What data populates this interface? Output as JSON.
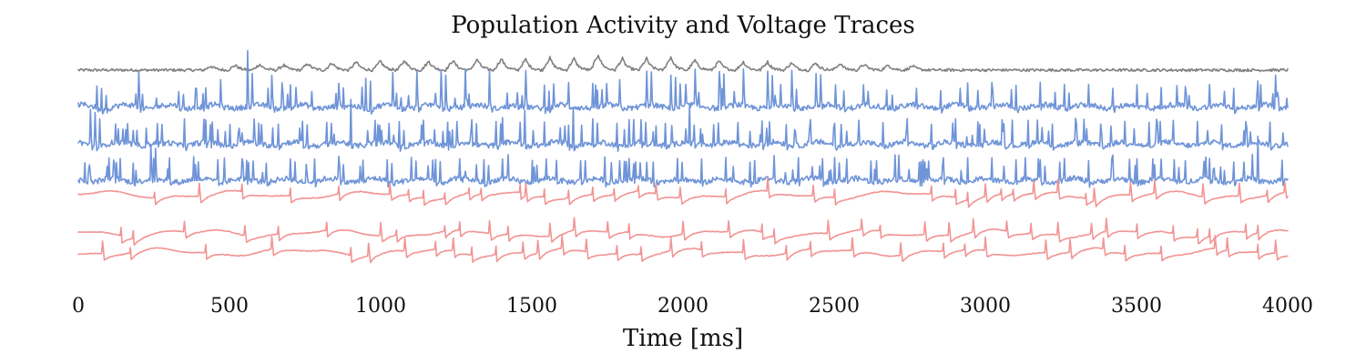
{
  "chart_data": {
    "type": "line",
    "title": "Population Activity and Voltage Traces",
    "xlabel": "Time [ms]",
    "ylabel": "",
    "xlim": [
      0,
      4000
    ],
    "xticks": [
      "0",
      "500",
      "1000",
      "1500",
      "2000",
      "2500",
      "3000",
      "3500",
      "4000"
    ],
    "xtick_values": [
      0,
      500,
      1000,
      1500,
      2000,
      2500,
      3000,
      3500,
      4000
    ],
    "grid": false,
    "legend": "none",
    "colors": {
      "population": "#808080",
      "blue_group": "#6f94d8",
      "red_group": "#f29494"
    },
    "series": [
      {
        "group": "population",
        "color": "#808080",
        "kind": "rate",
        "burst_peak_times_ms": [
          440,
          520,
          600,
          680,
          760,
          840,
          920,
          1000,
          1080,
          1160,
          1240,
          1320,
          1400,
          1480,
          1560,
          1640,
          1720,
          1800,
          1880,
          1960,
          2040,
          2120,
          2200,
          2280,
          2360,
          2440,
          2520,
          2600,
          2680,
          2760
        ],
        "burst_peak_heights": [
          0.25,
          0.3,
          0.35,
          0.3,
          0.4,
          0.45,
          0.5,
          0.55,
          0.6,
          0.55,
          0.6,
          0.65,
          0.7,
          0.65,
          0.75,
          0.7,
          0.95,
          0.7,
          0.7,
          0.8,
          0.6,
          0.55,
          0.5,
          0.5,
          0.45,
          0.45,
          0.4,
          0.35,
          0.3,
          0.25
        ]
      },
      {
        "group": "excitatory",
        "color": "#6f94d8",
        "kind": "spikes",
        "spike_times_ms": [
          60,
          75,
          90,
          200,
          210,
          330,
          345,
          410,
          420,
          470,
          560,
          575,
          640,
          690,
          700,
          770,
          850,
          860,
          875,
          950,
          965,
          1040,
          1050,
          1065,
          1120,
          1200,
          1215,
          1280,
          1290,
          1360,
          1450,
          1465,
          1480,
          1540,
          1555,
          1620,
          1700,
          1715,
          1730,
          1790,
          1880,
          1895,
          1960,
          1975,
          2040,
          2050,
          2120,
          2135,
          2200,
          2280,
          2295,
          2360,
          2440,
          2455,
          2530,
          2610,
          2690,
          2770,
          2850,
          2940,
          3020,
          3100,
          3180,
          3260,
          3340,
          3420,
          3500,
          3580,
          3660,
          3740,
          3820,
          3900,
          3960
        ]
      },
      {
        "group": "excitatory",
        "color": "#6f94d8",
        "kind": "spikes",
        "spike_times_ms": [
          40,
          55,
          70,
          130,
          145,
          260,
          275,
          350,
          420,
          435,
          500,
          580,
          595,
          660,
          740,
          755,
          820,
          835,
          900,
          980,
          995,
          1060,
          1075,
          1140,
          1220,
          1235,
          1300,
          1315,
          1380,
          1460,
          1475,
          1540,
          1620,
          1635,
          1700,
          1715,
          1780,
          1860,
          1875,
          1940,
          2020,
          2035,
          2100,
          2180,
          2260,
          2275,
          2340,
          2420,
          2500,
          2580,
          2660,
          2740,
          2820,
          2900,
          2980,
          3060,
          3140,
          3220,
          3300,
          3380,
          3460,
          3540,
          3620,
          3700,
          3780,
          3860,
          3940
        ]
      },
      {
        "group": "excitatory",
        "color": "#6f94d8",
        "kind": "spikes",
        "spike_times_ms": [
          20,
          35,
          100,
          115,
          180,
          240,
          255,
          300,
          380,
          395,
          460,
          540,
          555,
          620,
          700,
          715,
          780,
          860,
          875,
          940,
          1020,
          1035,
          1100,
          1180,
          1195,
          1260,
          1340,
          1355,
          1420,
          1500,
          1515,
          1580,
          1660,
          1675,
          1740,
          1820,
          1835,
          1900,
          1980,
          1995,
          2060,
          2140,
          2220,
          2235,
          2300,
          2380,
          2460,
          2540,
          2620,
          2700,
          2780,
          2860,
          2940,
          3020,
          3100,
          3180,
          3260,
          3340,
          3420,
          3500,
          3580,
          3660,
          3740,
          3820,
          3900,
          3980
        ]
      },
      {
        "group": "inhibitory",
        "color": "#f29494",
        "kind": "spikes",
        "spike_times_ms": [
          250,
          400,
          540,
          700,
          860,
          1030,
          1090,
          1140,
          1210,
          1290,
          1330,
          1460,
          1480,
          1540,
          1620,
          1700,
          1770,
          1850,
          1910,
          1990,
          2140,
          2280,
          2430,
          2500,
          2820,
          2900,
          2940,
          3000,
          3050,
          3090,
          3160,
          3240,
          3330,
          3360,
          3480,
          3560,
          3720,
          3840,
          3930,
          3990
        ]
      },
      {
        "group": "inhibitory",
        "color": "#f29494",
        "kind": "spikes",
        "spike_times_ms": [
          140,
          180,
          350,
          550,
          660,
          820,
          1000,
          1050,
          1210,
          1260,
          1360,
          1420,
          1560,
          1640,
          1750,
          1820,
          2000,
          2150,
          2260,
          2300,
          2480,
          2590,
          2650,
          2800,
          2880,
          2960,
          3070,
          3150,
          3240,
          3350,
          3400,
          3500,
          3620,
          3700,
          3740,
          3860,
          3900
        ]
      },
      {
        "group": "inhibitory",
        "color": "#f29494",
        "kind": "spikes",
        "spike_times_ms": [
          80,
          170,
          420,
          640,
          900,
          960,
          1080,
          1180,
          1240,
          1300,
          1380,
          1470,
          1520,
          1600,
          1680,
          1780,
          1860,
          1960,
          2060,
          2200,
          2340,
          2420,
          2560,
          2720,
          2860,
          2930,
          3000,
          3200,
          3280,
          3390,
          3460,
          3580,
          3760,
          3800,
          3900,
          3960
        ]
      }
    ]
  }
}
